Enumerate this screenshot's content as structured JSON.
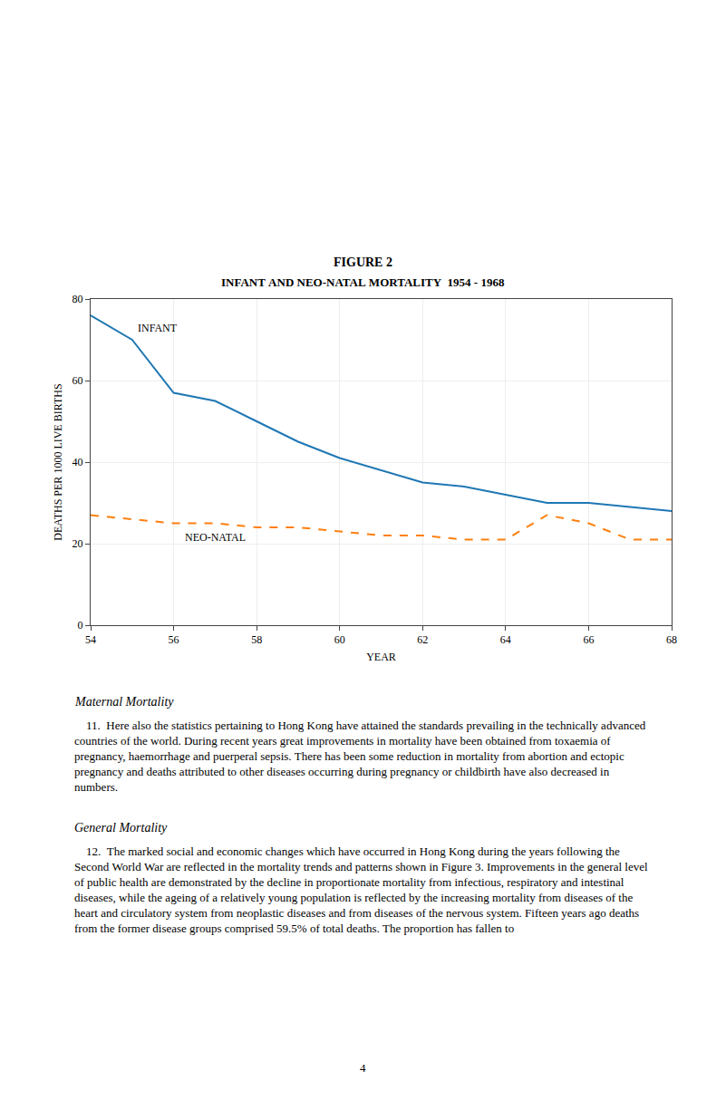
{
  "chart_data": {
    "type": "line",
    "title": "FIGURE 2",
    "subtitle": "INFANT AND NEO-NATAL MORTALITY  1954 - 1968",
    "xlabel": "YEAR",
    "ylabel": "DEATHS PER 1000 LIVE BIRTHS",
    "x": [
      54,
      55,
      56,
      57,
      58,
      59,
      60,
      61,
      62,
      63,
      64,
      65,
      66,
      67,
      68
    ],
    "series": [
      {
        "name": "INFANT",
        "values": [
          76,
          70,
          57,
          55,
          50,
          45,
          41,
          38,
          35,
          34,
          32,
          30,
          30,
          29,
          28
        ],
        "line_style": "solid"
      },
      {
        "name": "NEO-NATAL",
        "values": [
          27,
          26,
          25,
          25,
          24,
          24,
          23,
          22,
          22,
          21,
          21,
          27,
          25,
          21,
          21
        ],
        "line_style": "dashed"
      }
    ],
    "xlim": [
      54,
      68
    ],
    "ylim": [
      0,
      80
    ],
    "xticks": [
      54,
      56,
      58,
      60,
      62,
      64,
      66,
      68
    ],
    "yticks": [
      0,
      20,
      40,
      60,
      80
    ],
    "grid": true,
    "annotations": [
      "Maternal Mortality",
      "    11.  Here also the statistics pertaining to Hong Kong have attained the standards prevailing in the technically advanced countries of the world. During recent years great improvements in mortality have been obtained from toxaemia of pregnancy, haemorrhage and puerperal sepsis. There has been some reduction in mortality from abortion and ectopic pregnancy and deaths attributed to other diseases occurring during pregnancy or childbirth have also decreased in numbers.",
      "General Mortality",
      "    12.  The marked social and economic changes which have occurred in Hong Kong during the years following the Second World War are reflected in the mortality trends and patterns shown in Figure 3. Improvements in the general level of public health are demonstrated by the decline in proportionate mortality from infectious, respiratory and intestinal diseases, while the ageing of a relatively young population is reflected by the increasing mortality from diseases of the heart and circulatory system from neoplastic diseases and from diseases of the nervous system. Fifteen years ago deaths from the former disease groups comprised 59.5% of total deaths. The proportion has fallen to",
      "4"
    ]
  }
}
